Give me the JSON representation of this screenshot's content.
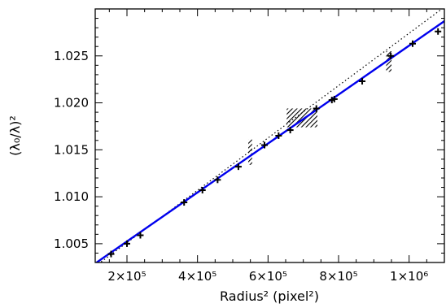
{
  "chart_data": {
    "type": "scatter",
    "xlabel": "Radius² (pixel²)",
    "ylabel": "(λ₀/λ)²",
    "xlim": [
      110000,
      1100000
    ],
    "ylim": [
      1.003,
      1.03
    ],
    "x_ticks": [
      {
        "value": 200000,
        "label": "2×10⁵"
      },
      {
        "value": 400000,
        "label": "4×10⁵"
      },
      {
        "value": 600000,
        "label": "6×10⁵"
      },
      {
        "value": 800000,
        "label": "8×10⁵"
      },
      {
        "value": 1000000,
        "label": "1×10⁶"
      }
    ],
    "y_ticks": [
      {
        "value": 1.005,
        "label": "1.005"
      },
      {
        "value": 1.01,
        "label": "1.010"
      },
      {
        "value": 1.015,
        "label": "1.015"
      },
      {
        "value": 1.02,
        "label": "1.020"
      },
      {
        "value": 1.025,
        "label": "1.025"
      }
    ],
    "points": [
      {
        "x": 155000,
        "y": 1.0039
      },
      {
        "x": 200000,
        "y": 1.005
      },
      {
        "x": 238000,
        "y": 1.0059
      },
      {
        "x": 362000,
        "y": 1.0094
      },
      {
        "x": 414000,
        "y": 1.0107
      },
      {
        "x": 457000,
        "y": 1.0118
      },
      {
        "x": 516000,
        "y": 1.0132
      },
      {
        "x": 590000,
        "y": 1.0155
      },
      {
        "x": 630000,
        "y": 1.0165
      },
      {
        "x": 663000,
        "y": 1.0171
      },
      {
        "x": 737000,
        "y": 1.0194
      },
      {
        "x": 781000,
        "y": 1.0203
      },
      {
        "x": 788000,
        "y": 1.0204
      },
      {
        "x": 867000,
        "y": 1.0223
      },
      {
        "x": 948000,
        "y": 1.025
      },
      {
        "x": 1010000,
        "y": 1.0263
      },
      {
        "x": 1082000,
        "y": 1.0276
      }
    ],
    "fit_line": {
      "color": "#0000ee",
      "x": [
        110000,
        1100000
      ],
      "y": [
        1.0029,
        1.0287
      ]
    },
    "reference_line": {
      "style": "dotted",
      "x": [
        110000,
        1100000
      ],
      "y": [
        1.0026,
        1.0302
      ]
    },
    "hatched_regions": [
      {
        "x": [
          544000,
          555000
        ],
        "y": [
          1.0134,
          1.0161
        ]
      },
      {
        "x": [
          653000,
          740000
        ],
        "y": [
          1.0174,
          1.0194
        ]
      },
      {
        "x": [
          935000,
          950000
        ],
        "y": [
          1.0233,
          1.0255
        ]
      }
    ],
    "grid": false
  }
}
